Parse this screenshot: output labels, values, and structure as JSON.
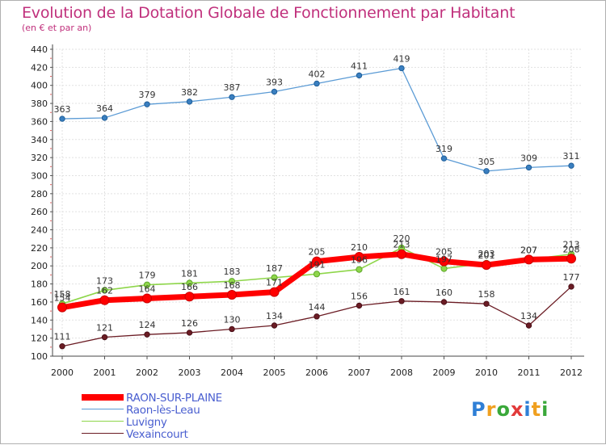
{
  "title": "Evolution de la Dotation Globale de Fonctionnement par Habitant",
  "subtitle": "(en € et par an)",
  "logo": "Proxiti",
  "chart_data": {
    "type": "line",
    "title": "Evolution de la Dotation Globale de Fonctionnement par Habitant",
    "subtitle": "(en € et par an)",
    "x": [
      "2000",
      "2001",
      "2002",
      "2003",
      "2004",
      "2005",
      "2006",
      "2007",
      "2008",
      "2009",
      "2010",
      "2011",
      "2012"
    ],
    "ylim": [
      100,
      440
    ],
    "ystep": 20,
    "grid": true,
    "legend_position": "bottom-left",
    "series": [
      {
        "name": "Raon-lès-Leau",
        "color": "#5b9bd5",
        "values": [
          363,
          364,
          379,
          382,
          387,
          393,
          402,
          411,
          419,
          319,
          305,
          309,
          311
        ]
      },
      {
        "name": "Vexaincourt",
        "color": "#6b1c24",
        "values": [
          111,
          121,
          124,
          126,
          130,
          134,
          144,
          156,
          161,
          160,
          158,
          134,
          177
        ]
      },
      {
        "name": "Luvigny",
        "color": "#8ed64a",
        "values": [
          158,
          173,
          179,
          181,
          183,
          187,
          191,
          196,
          220,
          197,
          203,
          207,
          213
        ]
      },
      {
        "name": "RAON-SUR-PLAINE",
        "color": "#ff0000",
        "values": [
          154,
          162,
          164,
          166,
          168,
          171,
          205,
          210,
          213,
          205,
          201,
          207,
          208
        ]
      }
    ]
  }
}
